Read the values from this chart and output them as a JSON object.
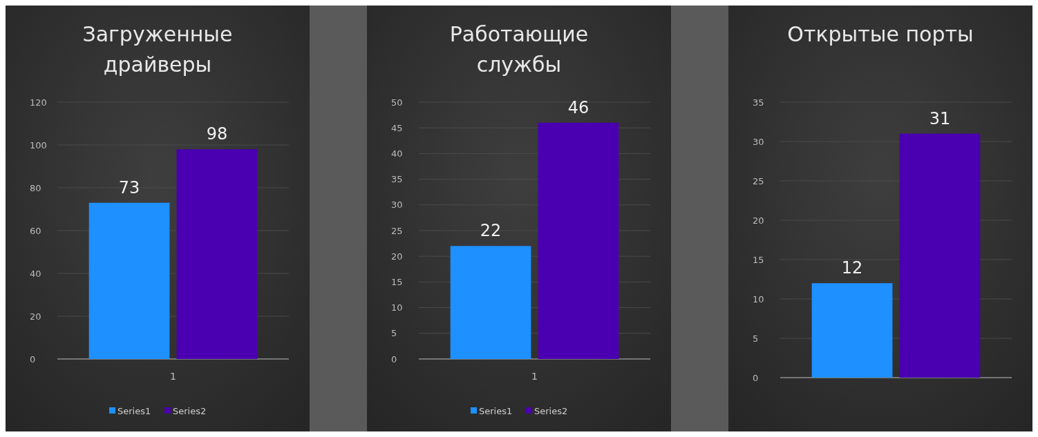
{
  "chart_data": [
    {
      "type": "bar",
      "title": "Загруженные драйверы",
      "categories": [
        "1"
      ],
      "series": [
        {
          "name": "Series1",
          "color": "#1e90ff",
          "values": [
            73
          ]
        },
        {
          "name": "Series2",
          "color": "#4a00b0",
          "values": [
            98
          ]
        }
      ],
      "ylim": [
        0,
        120
      ],
      "yticks": [
        0,
        20,
        40,
        60,
        80,
        100,
        120
      ],
      "grid": "y",
      "data_labels": true,
      "legend": "bottom"
    },
    {
      "type": "bar",
      "title": "Работающие службы",
      "categories": [
        "1"
      ],
      "series": [
        {
          "name": "Series1",
          "color": "#1e90ff",
          "values": [
            22
          ]
        },
        {
          "name": "Series2",
          "color": "#4a00b0",
          "values": [
            46
          ]
        }
      ],
      "ylim": [
        0,
        50
      ],
      "yticks": [
        0,
        5,
        10,
        15,
        20,
        25,
        30,
        35,
        40,
        45,
        50
      ],
      "grid": "y",
      "data_labels": true,
      "legend": "bottom"
    },
    {
      "type": "bar",
      "title": "Открытые порты",
      "categories": [
        null
      ],
      "series": [
        {
          "color": "#1e90ff",
          "values": [
            12
          ]
        },
        {
          "color": "#4a00b0",
          "values": [
            31
          ]
        }
      ],
      "ylim": [
        0,
        35
      ],
      "yticks": [
        0,
        5,
        10,
        15,
        20,
        25,
        30,
        35
      ],
      "grid": "y",
      "data_labels": true
    }
  ]
}
